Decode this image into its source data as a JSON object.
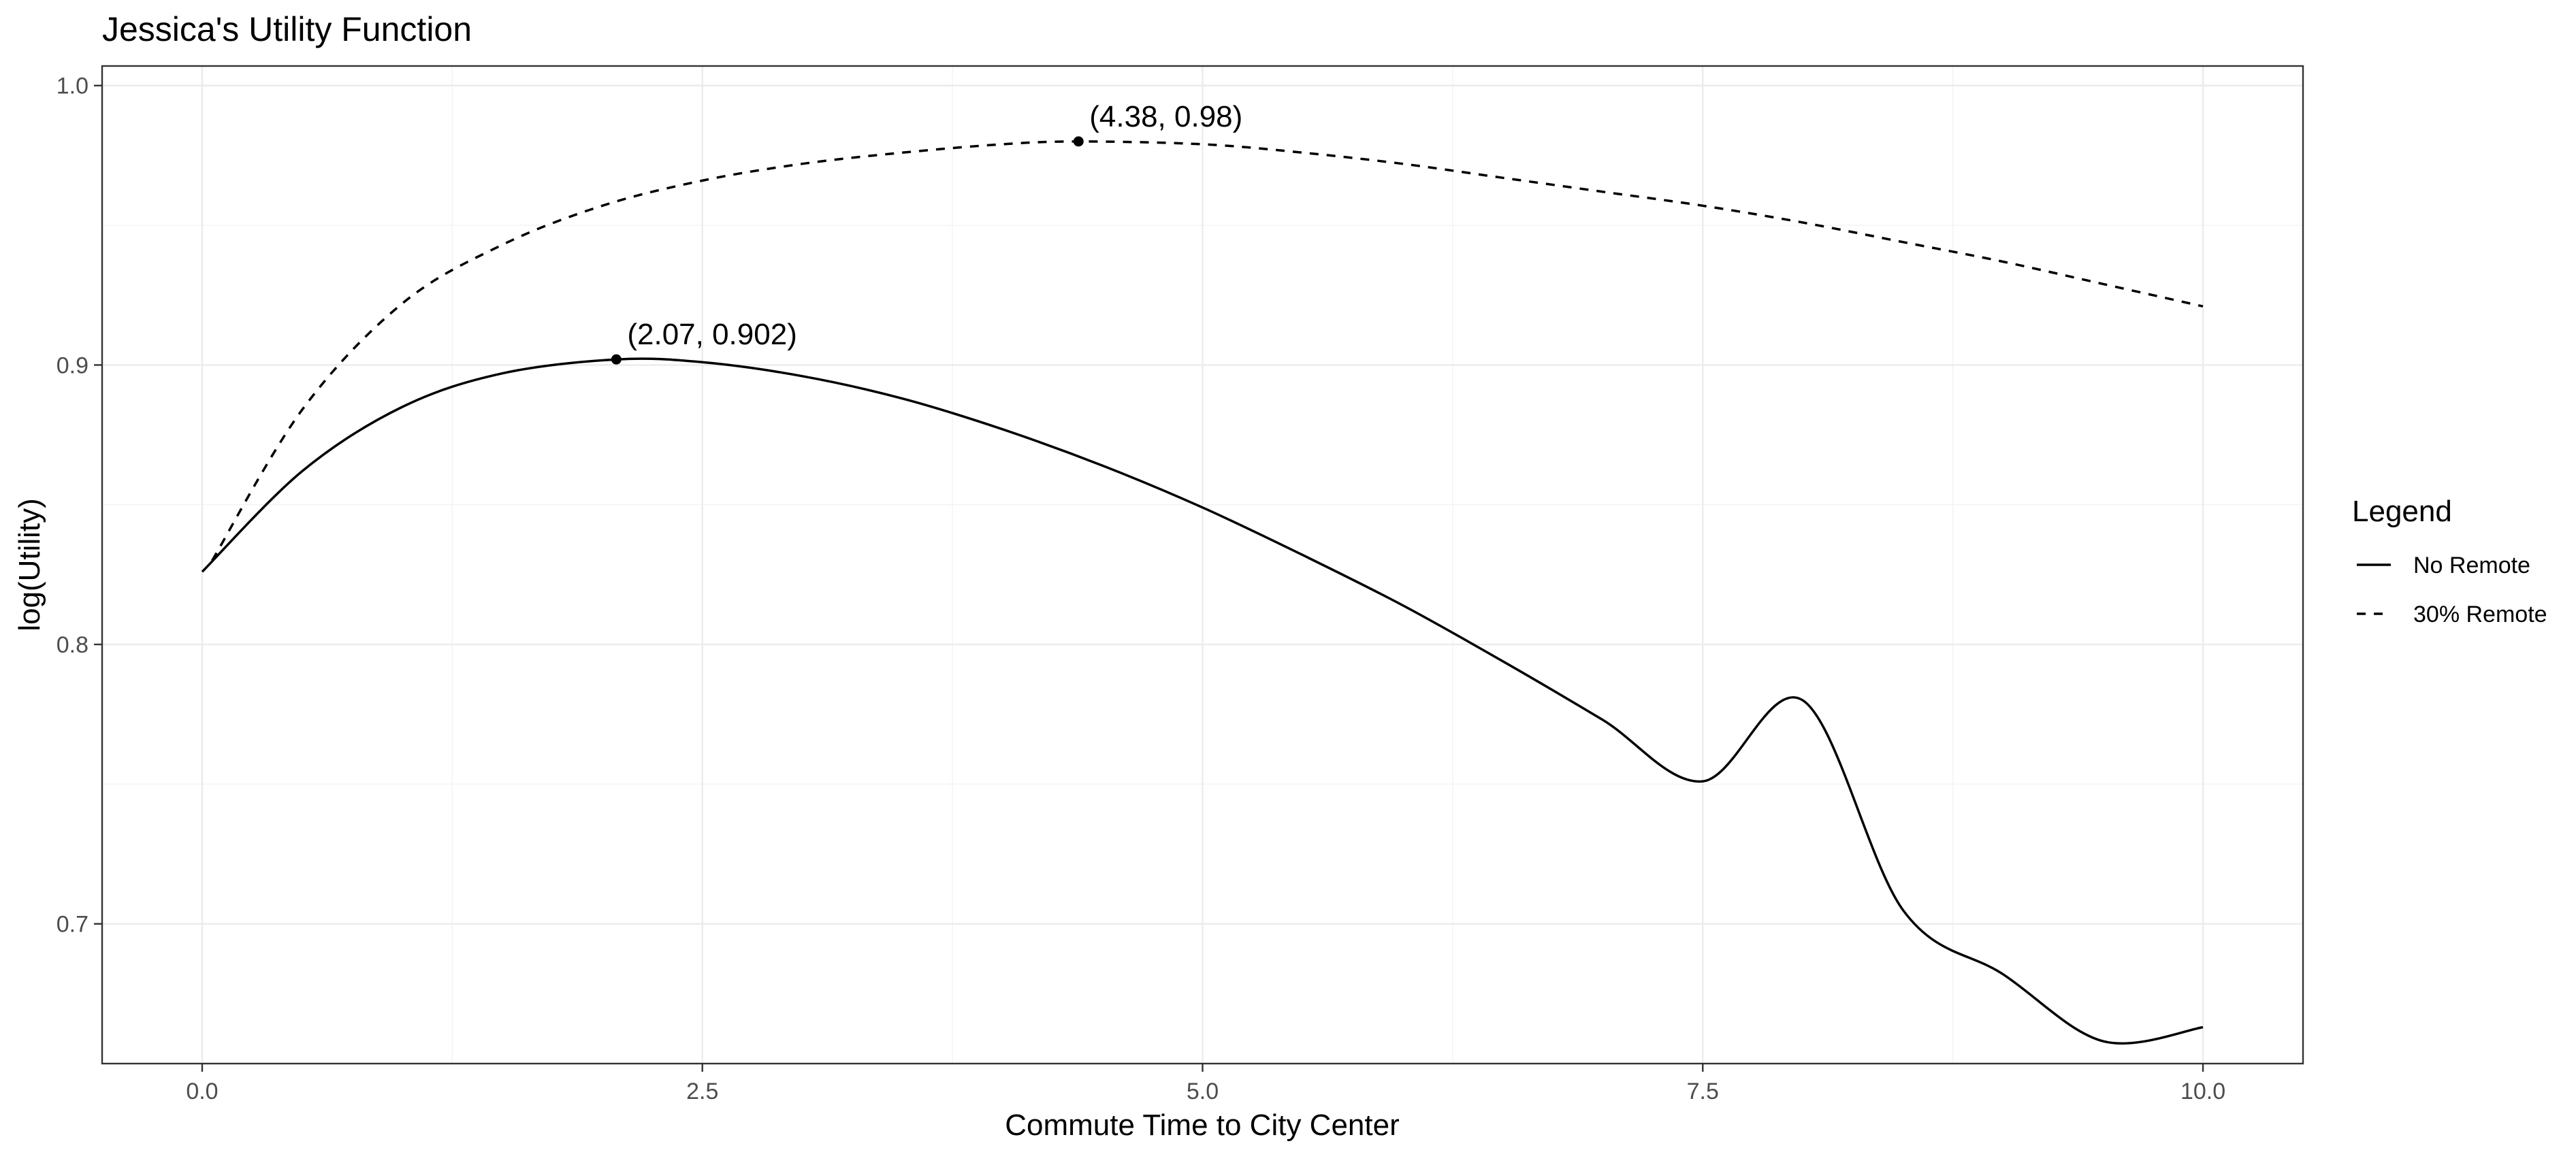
{
  "chart_data": {
    "type": "line",
    "title": "Jessica's Utility Function",
    "xlabel": "Commute Time to City Center",
    "ylabel": "log(Utility)",
    "xlim": [
      -0.5,
      10.5
    ],
    "ylim": [
      0.65,
      1.007
    ],
    "x_ticks": [
      0.0,
      2.5,
      5.0,
      7.5,
      10.0
    ],
    "x_tick_labels": [
      "0.0",
      "2.5",
      "5.0",
      "7.5",
      "10.0"
    ],
    "y_ticks": [
      0.7,
      0.8,
      0.9,
      1.0
    ],
    "y_tick_labels": [
      "0.7",
      "0.8",
      "0.9",
      "1.0"
    ],
    "grid": true,
    "legend": {
      "title": "Legend",
      "position": "right",
      "entries": [
        {
          "label": "No Remote",
          "line_style": "solid"
        },
        {
          "label": "30% Remote",
          "line_style": "dashed"
        }
      ]
    },
    "series": [
      {
        "name": "No Remote",
        "line_style": "solid",
        "color": "#000000",
        "x": [
          0,
          0.5,
          1.0,
          1.5,
          2.07,
          2.5,
          3.0,
          3.5,
          4.0,
          4.5,
          5.0,
          5.5,
          6.0,
          6.5,
          7.0,
          7.5,
          8.0,
          8.5,
          9.0,
          9.5,
          10.0
        ],
        "y": [
          0.826,
          0.862,
          0.885,
          0.897,
          0.902,
          0.901,
          0.896,
          0.888,
          0.877,
          0.864,
          0.849,
          0.832,
          0.814,
          0.794,
          0.773,
          0.751,
          0.78,
          0.705,
          0.682,
          0.658,
          0.663
        ]
      },
      {
        "name": "30% Remote",
        "line_style": "dashed",
        "color": "#000000",
        "x": [
          0.05,
          0.5,
          1.0,
          1.5,
          2.0,
          2.5,
          3.0,
          3.5,
          4.0,
          4.38,
          5.0,
          5.5,
          6.0,
          6.5,
          7.0,
          7.5,
          8.0,
          8.5,
          9.0,
          9.5,
          10.0
        ],
        "y": [
          0.83,
          0.884,
          0.922,
          0.943,
          0.957,
          0.966,
          0.972,
          0.976,
          0.979,
          0.98,
          0.979,
          0.976,
          0.972,
          0.967,
          0.962,
          0.957,
          0.951,
          0.944,
          0.937,
          0.929,
          0.921
        ]
      }
    ],
    "annotations": [
      {
        "x": 2.07,
        "y": 0.902,
        "label": "(2.07, 0.902)"
      },
      {
        "x": 4.38,
        "y": 0.98,
        "label": "(4.38, 0.98)"
      }
    ]
  }
}
